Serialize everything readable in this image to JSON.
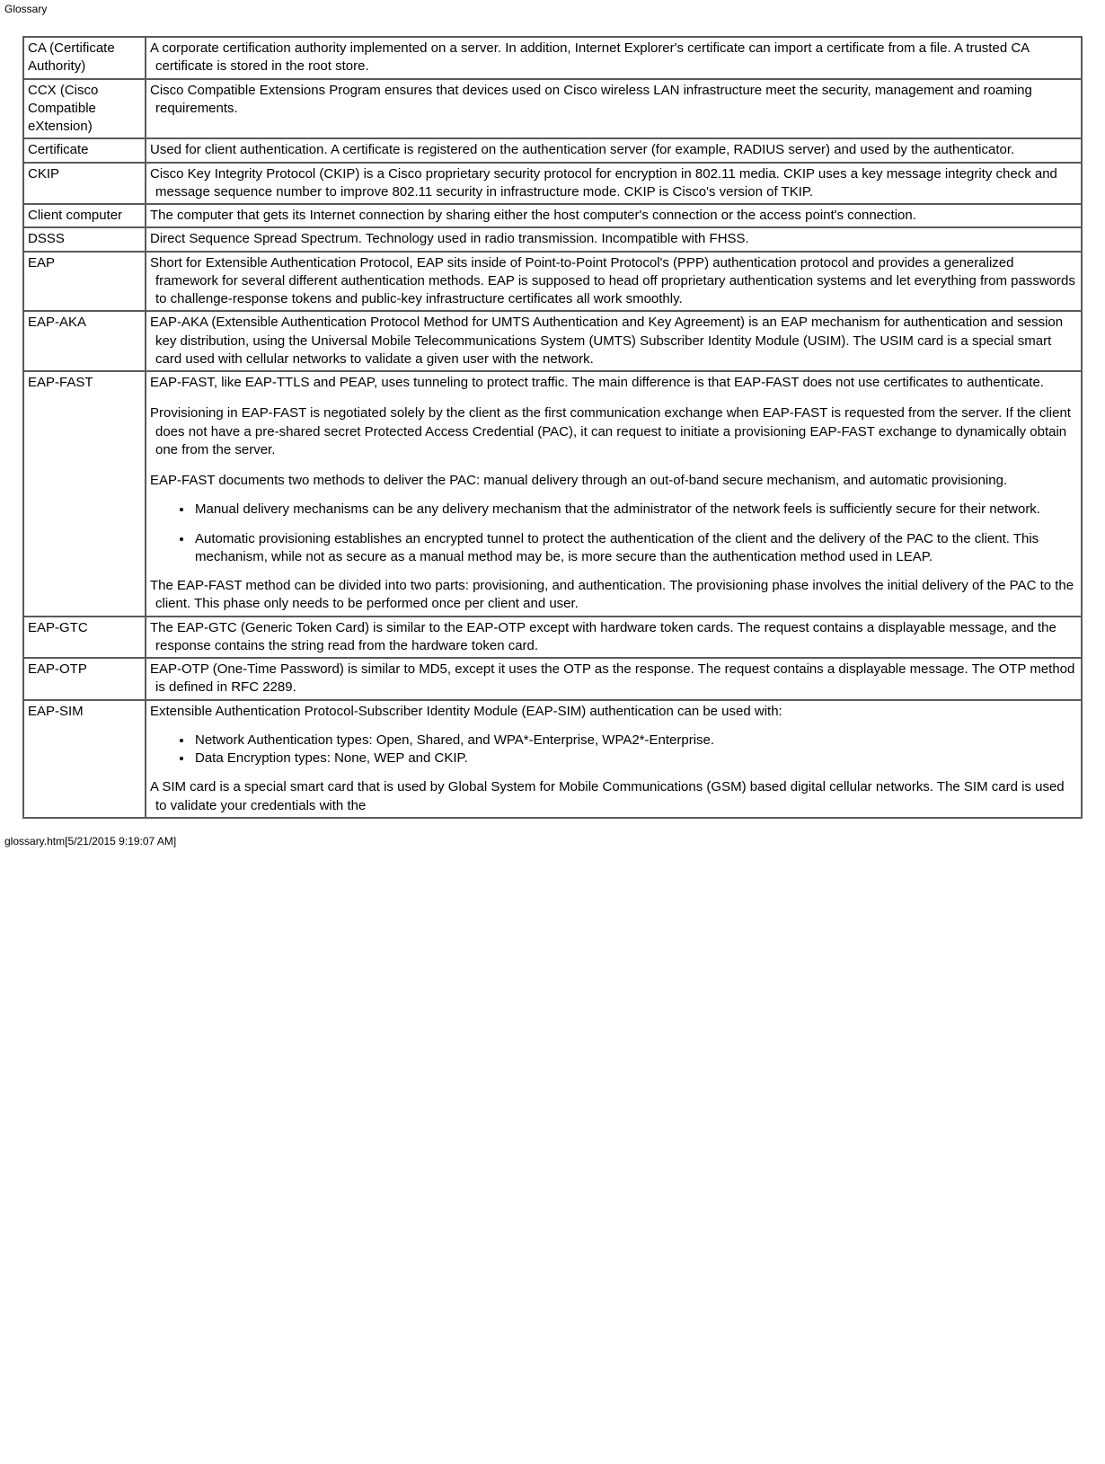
{
  "header": "Glossary",
  "footer": "glossary.htm[5/21/2015 9:19:07 AM]",
  "rows": [
    {
      "term": "CA (Certificate Authority)",
      "defs": [
        "A corporate certification authority implemented on a server. In addition, Internet Explorer's certificate can import a certificate from a file. A trusted CA certificate is stored in the root store."
      ]
    },
    {
      "term": "CCX (Cisco Compatible eXtension)",
      "defs": [
        "Cisco Compatible Extensions Program ensures that devices used on Cisco wireless LAN infrastructure meet the security, management and roaming requirements."
      ]
    },
    {
      "term": "Certificate",
      "defs": [
        "Used for client authentication. A certificate is registered on the authentication server (for example, RADIUS server) and used by the authenticator."
      ]
    },
    {
      "term": "CKIP",
      "defs": [
        "Cisco Key Integrity Protocol (CKIP) is a Cisco proprietary security protocol for encryption in 802.11 media. CKIP uses a key message integrity check and message sequence number to improve 802.11 security in infrastructure mode. CKIP is Cisco's version of TKIP."
      ]
    },
    {
      "term": "Client computer",
      "defs": [
        "The computer that gets its Internet connection by sharing either the host computer's connection or the access point's connection."
      ]
    },
    {
      "term": "DSSS",
      "defs": [
        "Direct Sequence Spread Spectrum. Technology used in radio transmission. Incompatible with FHSS."
      ]
    },
    {
      "term": "EAP",
      "defs": [
        "Short for Extensible Authentication Protocol, EAP sits inside of Point-to-Point Protocol's (PPP) authentication protocol and provides a generalized framework for several different authentication methods. EAP is supposed to head off proprietary authentication systems and let everything from passwords to challenge-response tokens and public-key infrastructure certificates all work smoothly."
      ]
    },
    {
      "term": "EAP-AKA",
      "defs": [
        "EAP-AKA (Extensible Authentication Protocol Method for UMTS Authentication and Key Agreement) is an EAP mechanism for authentication and session key distribution, using the Universal Mobile Telecommunications System (UMTS) Subscriber Identity Module (USIM). The USIM card is a special smart card used with cellular networks to validate a given user with the network."
      ]
    },
    {
      "term": "EAP-FAST",
      "defs": [
        "EAP-FAST, like EAP-TTLS and PEAP, uses tunneling to protect traffic. The main difference is that EAP-FAST does not use certificates to authenticate.",
        "Provisioning in EAP-FAST is negotiated solely by the client as the first communication exchange when EAP-FAST is requested from the server. If the client does not have a pre-shared secret Protected Access Credential (PAC), it can request to initiate a provisioning EAP-FAST exchange to dynamically obtain one from the server.",
        "EAP-FAST documents two methods to deliver the PAC: manual delivery through an out-of-band secure mechanism, and automatic provisioning."
      ],
      "list": [
        "Manual delivery mechanisms can be any delivery mechanism that the administrator of the network feels is sufficiently secure for their network.",
        "Automatic provisioning establishes an encrypted tunnel to protect the authentication of the client and the delivery of the PAC to the client. This mechanism, while not as secure as a manual method may be, is more secure than the authentication method used in LEAP."
      ],
      "defs_after": [
        "The EAP-FAST method can be divided into two parts: provisioning, and authentication. The provisioning phase involves the initial delivery of the PAC to the client. This phase only needs to be performed once per client and user."
      ]
    },
    {
      "term": "EAP-GTC",
      "defs": [
        "The EAP-GTC (Generic Token Card) is similar to the EAP-OTP except with hardware token cards. The request contains a displayable message, and the response contains the string read from the hardware token card."
      ]
    },
    {
      "term": "EAP-OTP",
      "defs": [
        "EAP-OTP (One-Time Password) is similar to MD5, except it uses the OTP as the response. The request contains a displayable message. The OTP method is defined in RFC 2289."
      ]
    },
    {
      "term": "EAP-SIM",
      "defs": [
        "Extensible Authentication Protocol-Subscriber Identity Module (EAP-SIM) authentication can be used with:"
      ],
      "list_tight": [
        "Network Authentication types: Open, Shared, and WPA*-Enterprise, WPA2*-Enterprise.",
        "Data Encryption types: None, WEP and CKIP."
      ],
      "defs_after": [
        "A SIM card is a special smart card that is used by Global System for Mobile Communications (GSM) based digital cellular networks. The SIM card is used to validate your credentials with the"
      ]
    }
  ]
}
